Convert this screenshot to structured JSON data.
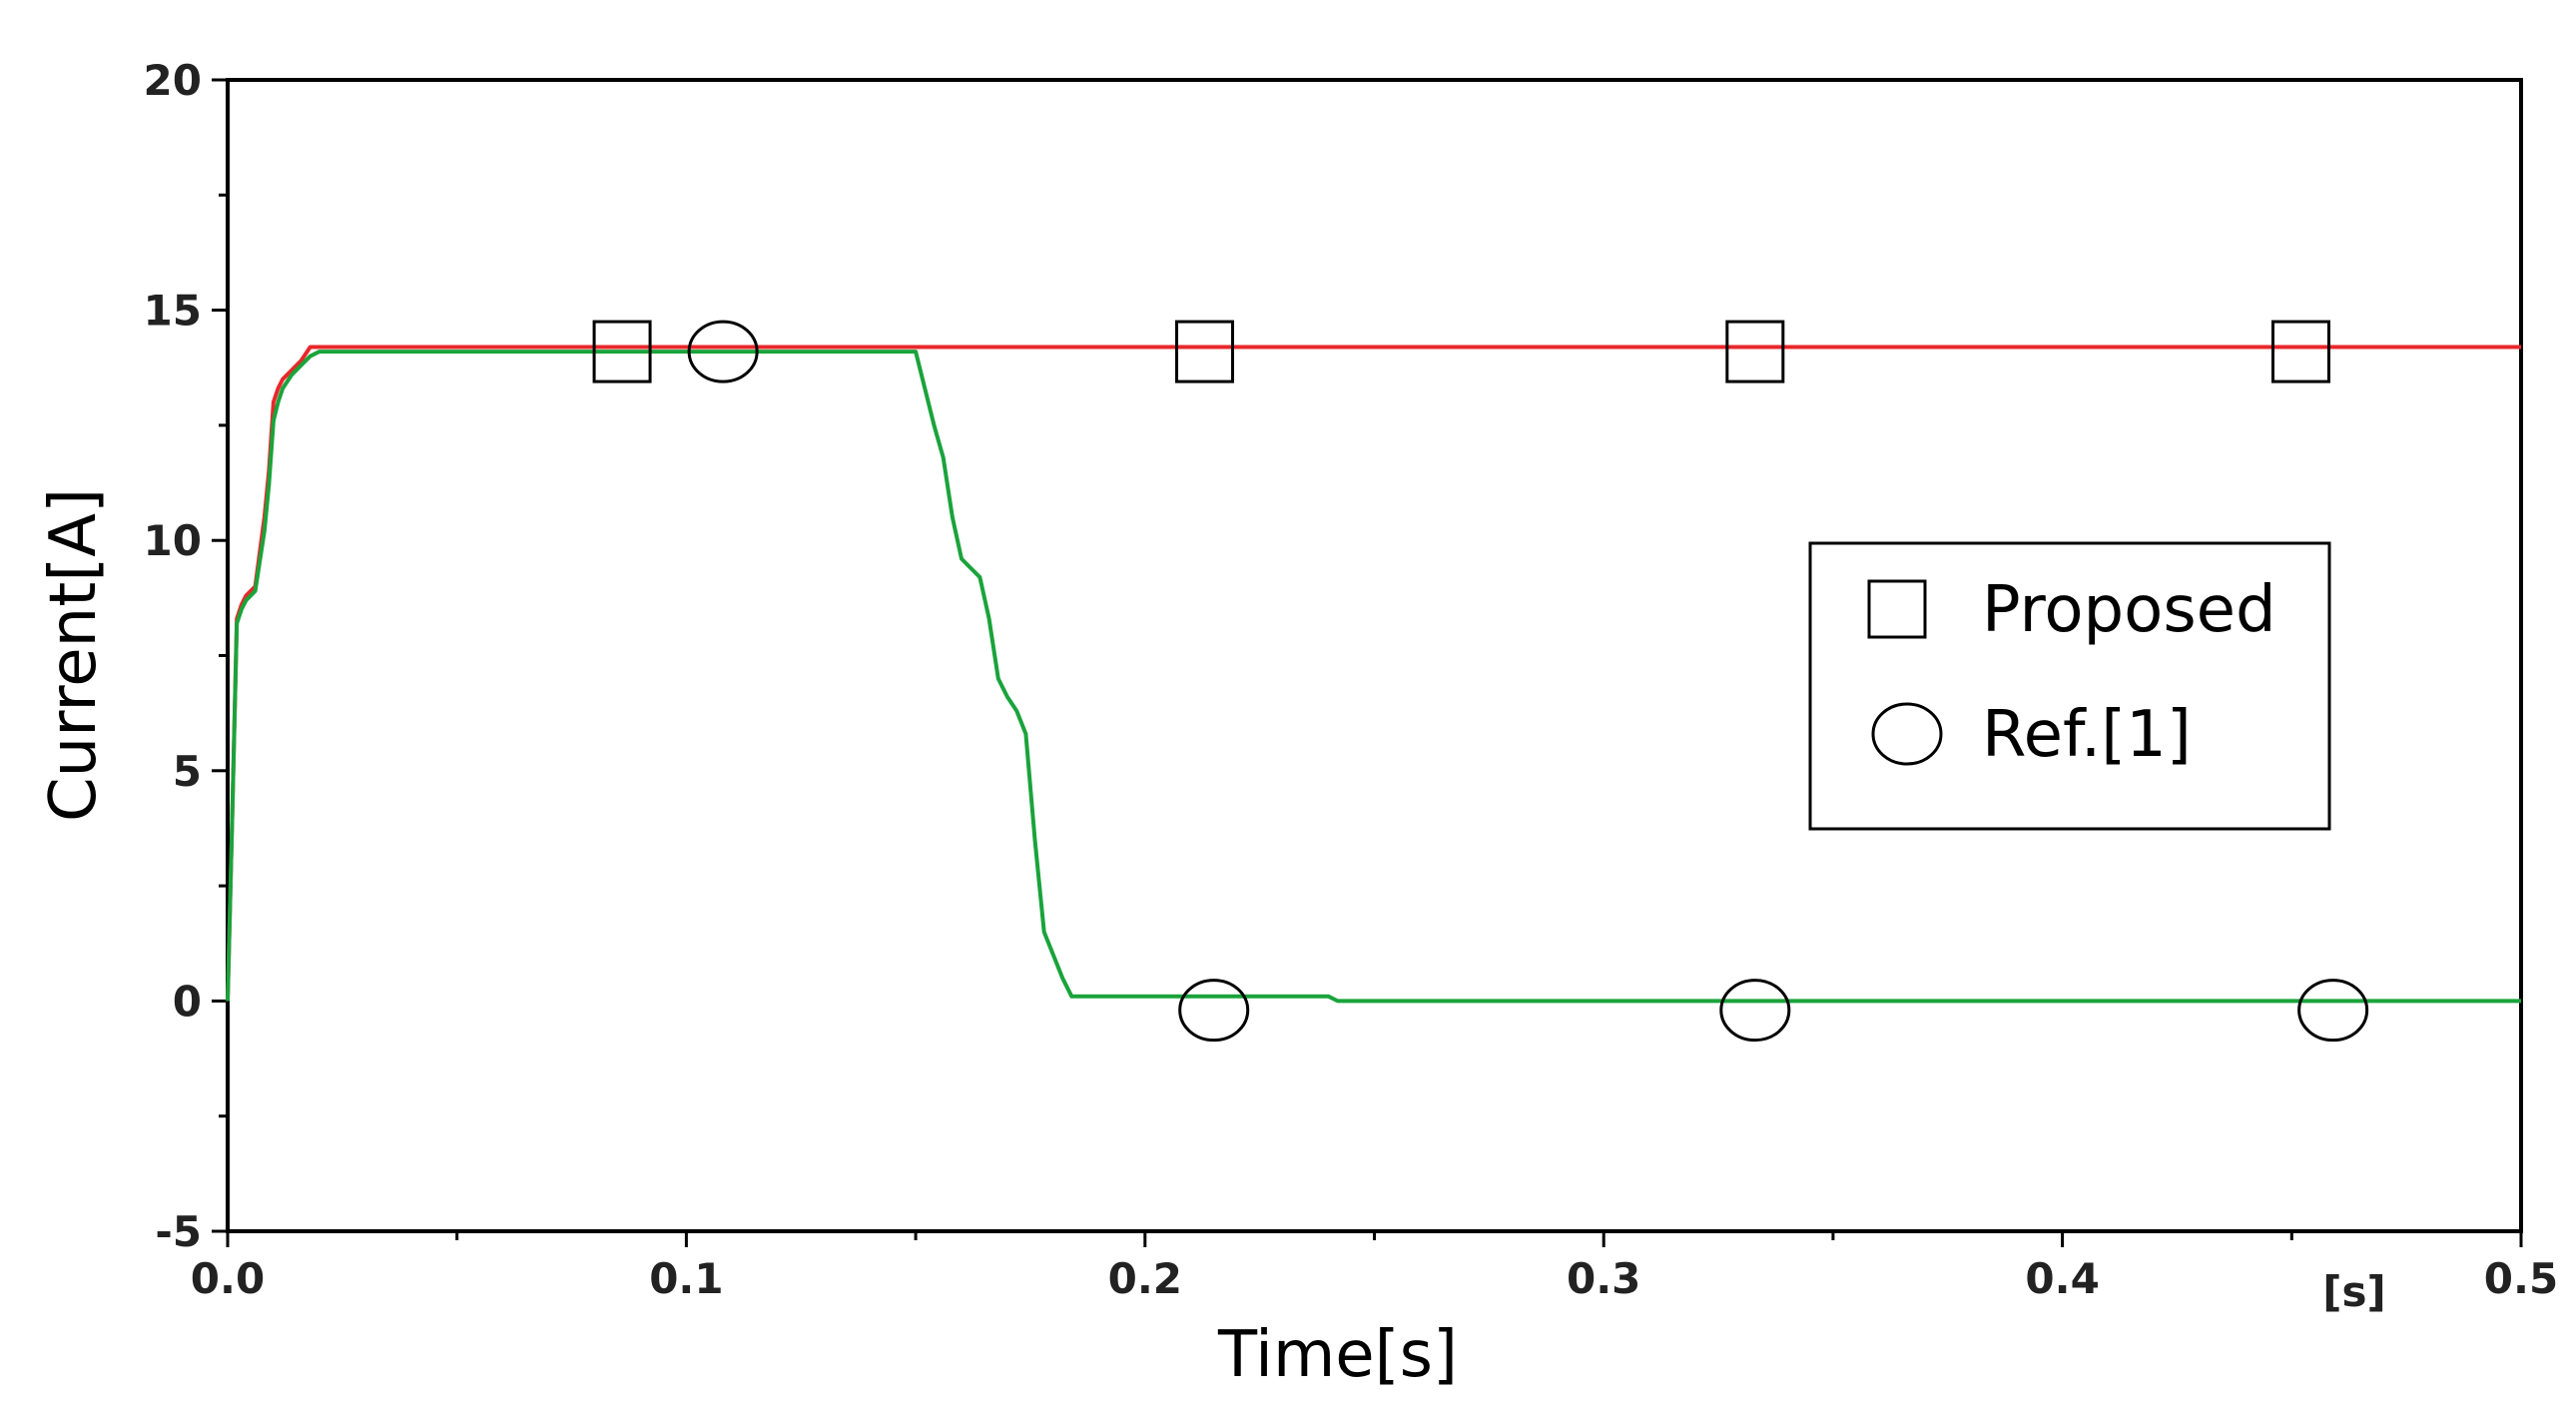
{
  "chart_data": {
    "type": "line",
    "xlabel": "Time[s]",
    "ylabel": "Current[A]",
    "x_unit_label": "[s]",
    "xlim": [
      0,
      0.5
    ],
    "ylim": [
      -5,
      20
    ],
    "x_ticks": [
      0.0,
      0.1,
      0.2,
      0.3,
      0.4,
      0.5
    ],
    "x_tick_labels": [
      "0.0",
      "0.1",
      "0.2",
      "0.3",
      "0.4",
      "0.5"
    ],
    "y_ticks": [
      -5,
      0,
      5,
      10,
      15,
      20
    ],
    "y_tick_labels": [
      "-5",
      "0",
      "5",
      "10",
      "15",
      "20"
    ],
    "grid": false,
    "legend_position": "right",
    "series": [
      {
        "name": "Proposed",
        "color": "#e8282b",
        "marker": "square",
        "x": [
          0,
          0.001,
          0.002,
          0.003,
          0.004,
          0.006,
          0.008,
          0.009,
          0.01,
          0.011,
          0.012,
          0.014,
          0.016,
          0.018,
          0.02,
          0.5
        ],
        "y": [
          0,
          4,
          8.3,
          8.6,
          8.8,
          9.0,
          10.5,
          11.5,
          13.0,
          13.3,
          13.5,
          13.7,
          13.9,
          14.2,
          14.2,
          14.2
        ],
        "marker_x": [
          0.086,
          0.213,
          0.333,
          0.452
        ],
        "marker_y": [
          14.1,
          14.1,
          14.1,
          14.1
        ]
      },
      {
        "name": "Ref.[1]",
        "color": "#1aa33b",
        "marker": "circle",
        "x": [
          0,
          0.001,
          0.002,
          0.003,
          0.004,
          0.006,
          0.008,
          0.009,
          0.01,
          0.011,
          0.012,
          0.014,
          0.016,
          0.018,
          0.02,
          0.15,
          0.152,
          0.154,
          0.156,
          0.158,
          0.16,
          0.162,
          0.164,
          0.166,
          0.168,
          0.17,
          0.172,
          0.174,
          0.176,
          0.178,
          0.18,
          0.182,
          0.184,
          0.186,
          0.24,
          0.242,
          0.5
        ],
        "y": [
          0,
          4,
          8.2,
          8.5,
          8.7,
          8.9,
          10.2,
          11.2,
          12.6,
          13.0,
          13.3,
          13.6,
          13.8,
          14.0,
          14.1,
          14.1,
          13.3,
          12.5,
          11.8,
          10.5,
          9.6,
          9.4,
          9.2,
          8.3,
          7.0,
          6.6,
          6.3,
          5.8,
          3.5,
          1.5,
          1.0,
          0.5,
          0.1,
          0.1,
          0.1,
          0.0,
          0.0
        ],
        "marker_x": [
          0.108,
          0.215,
          0.333,
          0.459
        ],
        "marker_y": [
          14.1,
          -0.2,
          -0.2,
          -0.2
        ]
      }
    ]
  }
}
